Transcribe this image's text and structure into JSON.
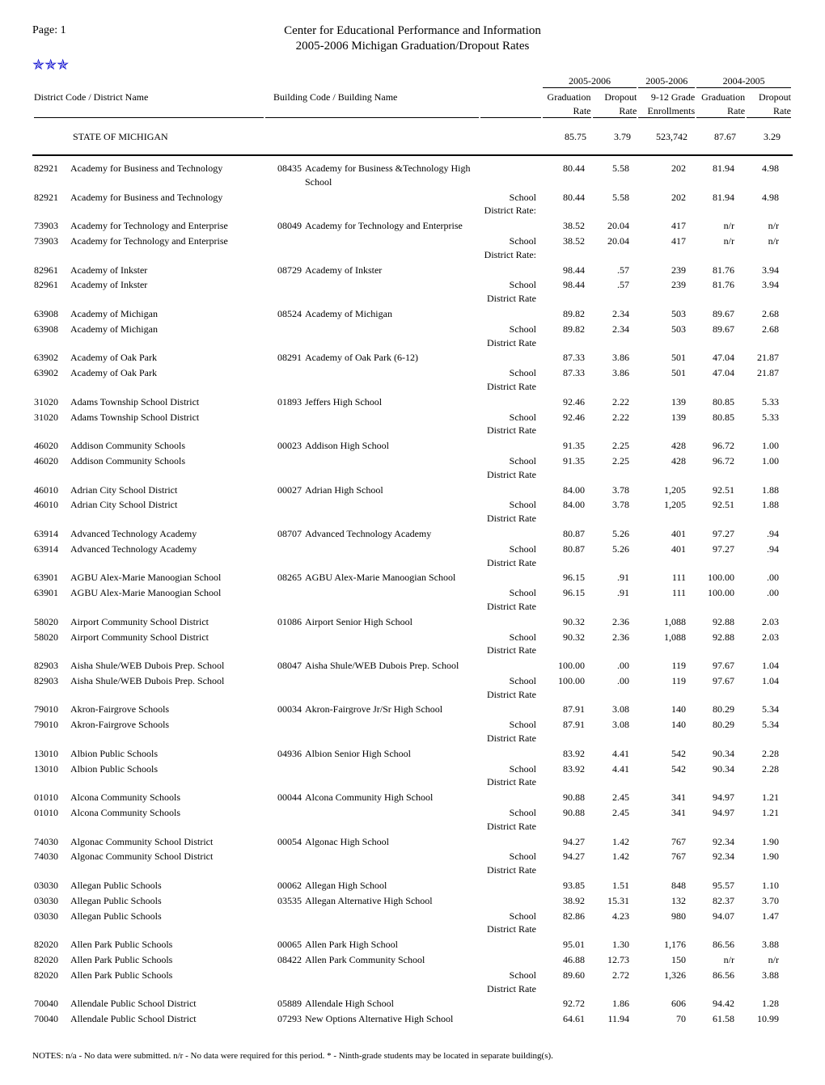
{
  "page_label": "Page: 1",
  "title_line1": "Center for Educational Performance and Information",
  "title_line2": "2005-2006 Michigan Graduation/Dropout Rates",
  "logo_glyph": "✯✯✯",
  "headers": {
    "district_code_name": "District Code / District Name",
    "building_code_name": "Building Code / Building Name",
    "year_0506": "2005-2006",
    "year_0405": "2004-2005",
    "grad_rate": "Graduation",
    "rate": "Rate",
    "dropout": "Dropout",
    "grade_912": "9-12 Grade",
    "enrollments": "Enrollments"
  },
  "state_row": {
    "label": "STATE OF MICHIGAN",
    "grad_rate": "85.75",
    "drop_rate": "3.79",
    "enroll": "523,742",
    "grad_rate_prev": "87.67",
    "drop_rate_prev": "3.29"
  },
  "rows": [
    {
      "dc": "82921",
      "dn": "Academy for Business and Technology",
      "bc": "08435",
      "bn": "Academy for Business &Technology High School",
      "rl": "",
      "gr": "80.44",
      "dr": "5.58",
      "en": "202",
      "gr2": "81.94",
      "dr2": "4.98"
    },
    {
      "dc": "82921",
      "dn": "Academy for Business and Technology",
      "bc": "",
      "bn": "",
      "rl": "School District Rate:",
      "gr": "80.44",
      "dr": "5.58",
      "en": "202",
      "gr2": "81.94",
      "dr2": "4.98"
    },
    {
      "dc": "73903",
      "dn": "Academy for Technology and Enterprise",
      "bc": "08049",
      "bn": "Academy for Technology and Enterprise",
      "rl": "",
      "gr": "38.52",
      "dr": "20.04",
      "en": "417",
      "gr2": "n/r",
      "dr2": "n/r"
    },
    {
      "dc": "73903",
      "dn": "Academy for Technology and Enterprise",
      "bc": "",
      "bn": "",
      "rl": "School District Rate:",
      "gr": "38.52",
      "dr": "20.04",
      "en": "417",
      "gr2": "n/r",
      "dr2": "n/r"
    },
    {
      "dc": "82961",
      "dn": "Academy of Inkster",
      "bc": "08729",
      "bn": "Academy of Inkster",
      "rl": "",
      "gr": "98.44",
      "dr": ".57",
      "en": "239",
      "gr2": "81.76",
      "dr2": "3.94"
    },
    {
      "dc": "82961",
      "dn": "Academy of Inkster",
      "bc": "",
      "bn": "",
      "rl": "School District Rate",
      "gr": "98.44",
      "dr": ".57",
      "en": "239",
      "gr2": "81.76",
      "dr2": "3.94"
    },
    {
      "dc": "63908",
      "dn": "Academy of Michigan",
      "bc": "08524",
      "bn": "Academy of Michigan",
      "rl": "",
      "gr": "89.82",
      "dr": "2.34",
      "en": "503",
      "gr2": "89.67",
      "dr2": "2.68"
    },
    {
      "dc": "63908",
      "dn": "Academy of Michigan",
      "bc": "",
      "bn": "",
      "rl": "School District Rate",
      "gr": "89.82",
      "dr": "2.34",
      "en": "503",
      "gr2": "89.67",
      "dr2": "2.68"
    },
    {
      "dc": "63902",
      "dn": "Academy of Oak Park",
      "bc": "08291",
      "bn": "Academy of Oak Park (6-12)",
      "rl": "",
      "gr": "87.33",
      "dr": "3.86",
      "en": "501",
      "gr2": "47.04",
      "dr2": "21.87"
    },
    {
      "dc": "63902",
      "dn": "Academy of Oak Park",
      "bc": "",
      "bn": "",
      "rl": "School District Rate",
      "gr": "87.33",
      "dr": "3.86",
      "en": "501",
      "gr2": "47.04",
      "dr2": "21.87"
    },
    {
      "dc": "31020",
      "dn": "Adams Township School District",
      "bc": "01893",
      "bn": "Jeffers High School",
      "rl": "",
      "gr": "92.46",
      "dr": "2.22",
      "en": "139",
      "gr2": "80.85",
      "dr2": "5.33"
    },
    {
      "dc": "31020",
      "dn": "Adams Township School District",
      "bc": "",
      "bn": "",
      "rl": "School District Rate",
      "gr": "92.46",
      "dr": "2.22",
      "en": "139",
      "gr2": "80.85",
      "dr2": "5.33"
    },
    {
      "dc": "46020",
      "dn": "Addison Community Schools",
      "bc": "00023",
      "bn": "Addison High School",
      "rl": "",
      "gr": "91.35",
      "dr": "2.25",
      "en": "428",
      "gr2": "96.72",
      "dr2": "1.00"
    },
    {
      "dc": "46020",
      "dn": "Addison Community Schools",
      "bc": "",
      "bn": "",
      "rl": "School District Rate",
      "gr": "91.35",
      "dr": "2.25",
      "en": "428",
      "gr2": "96.72",
      "dr2": "1.00"
    },
    {
      "dc": "46010",
      "dn": "Adrian City School District",
      "bc": "00027",
      "bn": "Adrian High School",
      "rl": "",
      "gr": "84.00",
      "dr": "3.78",
      "en": "1,205",
      "gr2": "92.51",
      "dr2": "1.88"
    },
    {
      "dc": "46010",
      "dn": "Adrian City School District",
      "bc": "",
      "bn": "",
      "rl": "School District Rate",
      "gr": "84.00",
      "dr": "3.78",
      "en": "1,205",
      "gr2": "92.51",
      "dr2": "1.88"
    },
    {
      "dc": "63914",
      "dn": "Advanced Technology Academy",
      "bc": "08707",
      "bn": "Advanced Technology Academy",
      "rl": "",
      "gr": "80.87",
      "dr": "5.26",
      "en": "401",
      "gr2": "97.27",
      "dr2": ".94"
    },
    {
      "dc": "63914",
      "dn": "Advanced Technology Academy",
      "bc": "",
      "bn": "",
      "rl": "School District Rate",
      "gr": "80.87",
      "dr": "5.26",
      "en": "401",
      "gr2": "97.27",
      "dr2": ".94"
    },
    {
      "dc": "63901",
      "dn": "AGBU Alex-Marie Manoogian School",
      "bc": "08265",
      "bn": "AGBU Alex-Marie Manoogian School",
      "rl": "",
      "gr": "96.15",
      "dr": ".91",
      "en": "111",
      "gr2": "100.00",
      "dr2": ".00"
    },
    {
      "dc": "63901",
      "dn": "AGBU Alex-Marie Manoogian School",
      "bc": "",
      "bn": "",
      "rl": "School District Rate",
      "gr": "96.15",
      "dr": ".91",
      "en": "111",
      "gr2": "100.00",
      "dr2": ".00"
    },
    {
      "dc": "58020",
      "dn": "Airport Community School District",
      "bc": "01086",
      "bn": "Airport Senior High School",
      "rl": "",
      "gr": "90.32",
      "dr": "2.36",
      "en": "1,088",
      "gr2": "92.88",
      "dr2": "2.03"
    },
    {
      "dc": "58020",
      "dn": "Airport Community School District",
      "bc": "",
      "bn": "",
      "rl": "School District Rate",
      "gr": "90.32",
      "dr": "2.36",
      "en": "1,088",
      "gr2": "92.88",
      "dr2": "2.03"
    },
    {
      "dc": "82903",
      "dn": "Aisha Shule/WEB Dubois Prep. School",
      "bc": "08047",
      "bn": "Aisha Shule/WEB Dubois Prep. School",
      "rl": "",
      "gr": "100.00",
      "dr": ".00",
      "en": "119",
      "gr2": "97.67",
      "dr2": "1.04"
    },
    {
      "dc": "82903",
      "dn": "Aisha Shule/WEB Dubois Prep. School",
      "bc": "",
      "bn": "",
      "rl": "School District Rate",
      "gr": "100.00",
      "dr": ".00",
      "en": "119",
      "gr2": "97.67",
      "dr2": "1.04"
    },
    {
      "dc": "79010",
      "dn": "Akron-Fairgrove Schools",
      "bc": "00034",
      "bn": "Akron-Fairgrove Jr/Sr High School",
      "rl": "",
      "gr": "87.91",
      "dr": "3.08",
      "en": "140",
      "gr2": "80.29",
      "dr2": "5.34"
    },
    {
      "dc": "79010",
      "dn": "Akron-Fairgrove Schools",
      "bc": "",
      "bn": "",
      "rl": "School District Rate",
      "gr": "87.91",
      "dr": "3.08",
      "en": "140",
      "gr2": "80.29",
      "dr2": "5.34"
    },
    {
      "dc": "13010",
      "dn": "Albion Public Schools",
      "bc": "04936",
      "bn": "Albion Senior High School",
      "rl": "",
      "gr": "83.92",
      "dr": "4.41",
      "en": "542",
      "gr2": "90.34",
      "dr2": "2.28"
    },
    {
      "dc": "13010",
      "dn": "Albion Public Schools",
      "bc": "",
      "bn": "",
      "rl": "School District Rate",
      "gr": "83.92",
      "dr": "4.41",
      "en": "542",
      "gr2": "90.34",
      "dr2": "2.28"
    },
    {
      "dc": "01010",
      "dn": "Alcona Community Schools",
      "bc": "00044",
      "bn": "Alcona Community High School",
      "rl": "",
      "gr": "90.88",
      "dr": "2.45",
      "en": "341",
      "gr2": "94.97",
      "dr2": "1.21"
    },
    {
      "dc": "01010",
      "dn": "Alcona Community Schools",
      "bc": "",
      "bn": "",
      "rl": "School District Rate",
      "gr": "90.88",
      "dr": "2.45",
      "en": "341",
      "gr2": "94.97",
      "dr2": "1.21"
    },
    {
      "dc": "74030",
      "dn": "Algonac Community School District",
      "bc": "00054",
      "bn": "Algonac High School",
      "rl": "",
      "gr": "94.27",
      "dr": "1.42",
      "en": "767",
      "gr2": "92.34",
      "dr2": "1.90"
    },
    {
      "dc": "74030",
      "dn": "Algonac Community School District",
      "bc": "",
      "bn": "",
      "rl": "School District Rate",
      "gr": "94.27",
      "dr": "1.42",
      "en": "767",
      "gr2": "92.34",
      "dr2": "1.90"
    },
    {
      "dc": "03030",
      "dn": "Allegan Public Schools",
      "bc": "00062",
      "bn": "Allegan High School",
      "rl": "",
      "gr": "93.85",
      "dr": "1.51",
      "en": "848",
      "gr2": "95.57",
      "dr2": "1.10"
    },
    {
      "dc": "03030",
      "dn": "Allegan Public Schools",
      "bc": "03535",
      "bn": "Allegan Alternative High School",
      "rl": "",
      "gr": "38.92",
      "dr": "15.31",
      "en": "132",
      "gr2": "82.37",
      "dr2": "3.70"
    },
    {
      "dc": "03030",
      "dn": "Allegan Public Schools",
      "bc": "",
      "bn": "",
      "rl": "School District Rate",
      "gr": "82.86",
      "dr": "4.23",
      "en": "980",
      "gr2": "94.07",
      "dr2": "1.47"
    },
    {
      "dc": "82020",
      "dn": "Allen Park Public Schools",
      "bc": "00065",
      "bn": "Allen Park High School",
      "rl": "",
      "gr": "95.01",
      "dr": "1.30",
      "en": "1,176",
      "gr2": "86.56",
      "dr2": "3.88"
    },
    {
      "dc": "82020",
      "dn": "Allen Park Public Schools",
      "bc": "08422",
      "bn": "Allen Park Community School",
      "rl": "",
      "gr": "46.88",
      "dr": "12.73",
      "en": "150",
      "gr2": "n/r",
      "dr2": "n/r"
    },
    {
      "dc": "82020",
      "dn": "Allen Park Public Schools",
      "bc": "",
      "bn": "",
      "rl": "School District Rate",
      "gr": "89.60",
      "dr": "2.72",
      "en": "1,326",
      "gr2": "86.56",
      "dr2": "3.88"
    },
    {
      "dc": "70040",
      "dn": "Allendale Public School District",
      "bc": "05889",
      "bn": "Allendale High School",
      "rl": "",
      "gr": "92.72",
      "dr": "1.86",
      "en": "606",
      "gr2": "94.42",
      "dr2": "1.28"
    },
    {
      "dc": "70040",
      "dn": "Allendale Public School District",
      "bc": "07293",
      "bn": "New Options Alternative High School",
      "rl": "",
      "gr": "64.61",
      "dr": "11.94",
      "en": "70",
      "gr2": "61.58",
      "dr2": "10.99"
    }
  ],
  "notes": "NOTES: n/a - No data were submitted. n/r - No data were required for this period. * - Ninth-grade students may be located in separate building(s)."
}
